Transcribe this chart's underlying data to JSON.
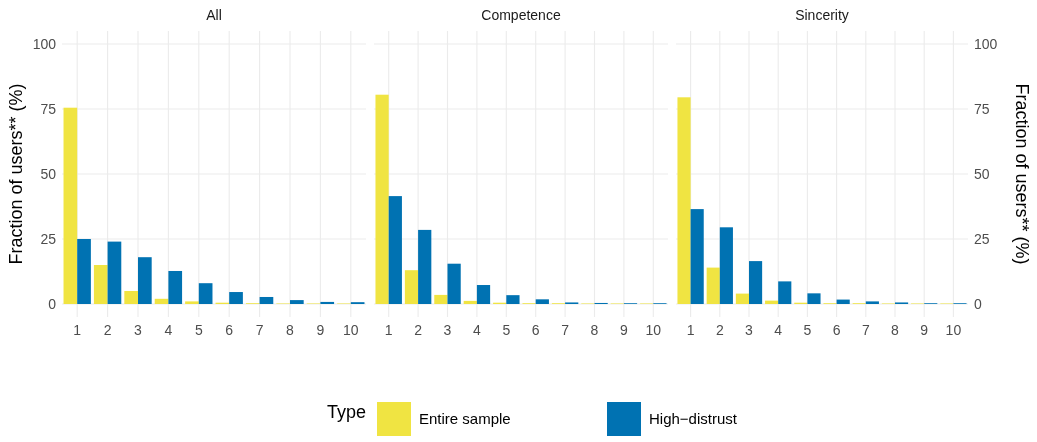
{
  "chart_data": [
    {
      "type": "bar",
      "title": "All",
      "ylabel": "Fraction of users** (%)",
      "categories": [
        "1",
        "2",
        "3",
        "4",
        "5",
        "6",
        "7",
        "8",
        "9",
        "10"
      ],
      "series": [
        {
          "name": "Entire sample",
          "color": "#f0e442",
          "values": [
            75.5,
            15,
            5,
            2,
            1,
            0.5,
            0.3,
            0.2,
            0.2,
            0.2
          ]
        },
        {
          "name": "High−distrust",
          "color": "#0072b2",
          "values": [
            25,
            24,
            18,
            12.7,
            8,
            4.6,
            2.7,
            1.5,
            0.8,
            0.7
          ]
        }
      ],
      "ylim": [
        -5,
        105
      ],
      "yticks": [
        0,
        25,
        50,
        75,
        100
      ],
      "grid": true,
      "legend": "bottom",
      "legend_title": "Type"
    },
    {
      "type": "bar",
      "title": "Competence",
      "categories": [
        "1",
        "2",
        "3",
        "4",
        "5",
        "6",
        "7",
        "8",
        "9",
        "10"
      ],
      "series": [
        {
          "color": "#f0e442",
          "values": [
            80.5,
            13,
            3.5,
            1.2,
            0.5,
            0.3,
            0.3,
            0.2,
            0.2,
            0.2
          ]
        },
        {
          "color": "#0072b2",
          "values": [
            41.5,
            28.5,
            15.5,
            7.3,
            3.4,
            1.8,
            0.6,
            0.4,
            0.3,
            0.3
          ]
        }
      ],
      "ylim": [
        -5,
        105
      ],
      "yticks": [
        0,
        25,
        50,
        75,
        100
      ],
      "grid": true,
      "tick_labels": "x"
    },
    {
      "type": "bar",
      "title": "Sincerity",
      "y2label": "Fraction of users** (%)",
      "categories": [
        "1",
        "2",
        "3",
        "4",
        "5",
        "6",
        "7",
        "8",
        "9",
        "10"
      ],
      "series": [
        {
          "color": "#f0e442",
          "values": [
            79.5,
            14,
            4,
            1.3,
            0.5,
            0.3,
            0.3,
            0.2,
            0.2,
            0.2
          ],
          "axis": "y2"
        },
        {
          "color": "#0072b2",
          "values": [
            36.5,
            29.5,
            16.5,
            8.7,
            4.1,
            1.7,
            1,
            0.6,
            0.3,
            0.3
          ],
          "axis": "y2"
        }
      ],
      "y2lim": [
        -5,
        105
      ],
      "y2ticks": [
        0,
        25,
        50,
        75,
        100
      ],
      "grid": true
    }
  ]
}
